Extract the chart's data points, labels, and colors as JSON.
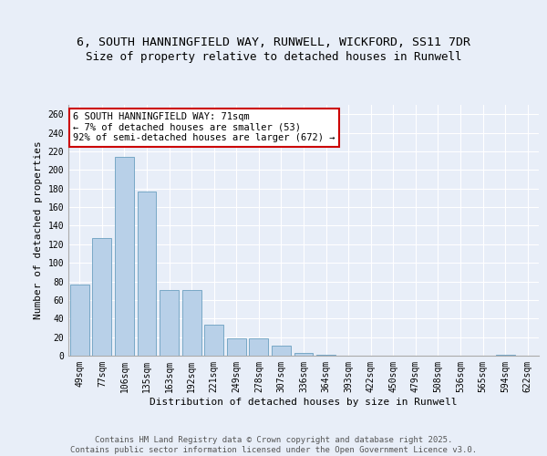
{
  "title_line1": "6, SOUTH HANNINGFIELD WAY, RUNWELL, WICKFORD, SS11 7DR",
  "title_line2": "Size of property relative to detached houses in Runwell",
  "xlabel": "Distribution of detached houses by size in Runwell",
  "ylabel": "Number of detached properties",
  "categories": [
    "49sqm",
    "77sqm",
    "106sqm",
    "135sqm",
    "163sqm",
    "192sqm",
    "221sqm",
    "249sqm",
    "278sqm",
    "307sqm",
    "336sqm",
    "364sqm",
    "393sqm",
    "422sqm",
    "450sqm",
    "479sqm",
    "508sqm",
    "536sqm",
    "565sqm",
    "594sqm",
    "622sqm"
  ],
  "values": [
    77,
    127,
    214,
    177,
    71,
    71,
    33,
    19,
    19,
    11,
    3,
    1,
    0,
    0,
    0,
    0,
    0,
    0,
    0,
    1,
    0
  ],
  "bar_color": "#b8d0e8",
  "bar_edge_color": "#6a9fc0",
  "annotation_text": "6 SOUTH HANNINGFIELD WAY: 71sqm\n← 7% of detached houses are smaller (53)\n92% of semi-detached houses are larger (672) →",
  "annotation_box_facecolor": "white",
  "annotation_box_edgecolor": "#cc0000",
  "ylim": [
    0,
    270
  ],
  "yticks": [
    0,
    20,
    40,
    60,
    80,
    100,
    120,
    140,
    160,
    180,
    200,
    220,
    240,
    260
  ],
  "bg_color": "#e8eef8",
  "grid_color": "white",
  "footer_text": "Contains HM Land Registry data © Crown copyright and database right 2025.\nContains public sector information licensed under the Open Government Licence v3.0.",
  "title_fontsize": 9.5,
  "axis_label_fontsize": 8,
  "tick_fontsize": 7,
  "annotation_fontsize": 7.5,
  "footer_fontsize": 6.5,
  "ylabel_fontsize": 8
}
